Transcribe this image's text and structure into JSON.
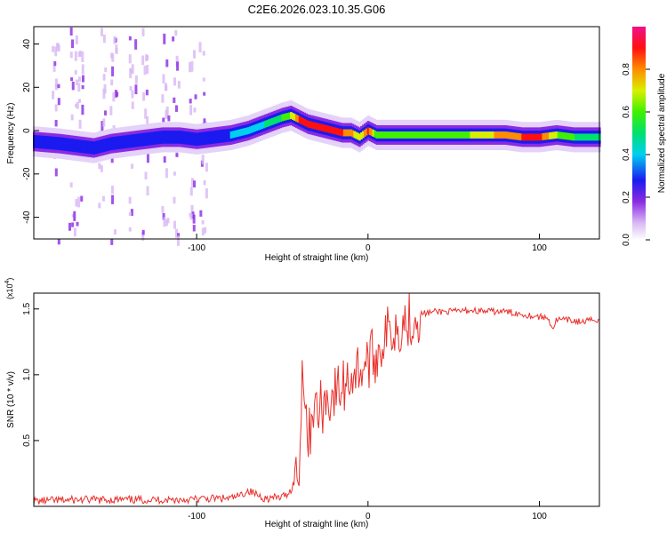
{
  "title": "C2E6.2026.023.10.35.G06",
  "chart_data": [
    {
      "type": "heatmap",
      "xlabel": "Height of straight line (km)",
      "ylabel": "Frequency (Hz)",
      "xlim": [
        -195,
        135
      ],
      "ylim": [
        -50,
        48
      ],
      "xticks": [
        -100,
        0,
        100
      ],
      "yticks": [
        -40,
        -20,
        0,
        20,
        40
      ],
      "grid": false,
      "ridge": {
        "x": [
          -195,
          -180,
          -170,
          -160,
          -150,
          -140,
          -130,
          -120,
          -110,
          -100,
          -90,
          -80,
          -70,
          -60,
          -50,
          -45,
          -40,
          -35,
          -30,
          -25,
          -20,
          -15,
          -10,
          -5,
          0,
          5,
          10,
          20,
          40,
          60,
          80,
          90,
          100,
          110,
          120,
          133
        ],
        "freq": [
          -5,
          -6,
          -7,
          -8,
          -6,
          -5,
          -4,
          -3,
          -3,
          -4,
          -3,
          -2,
          0,
          3,
          6,
          7,
          5,
          3,
          2,
          1,
          0,
          -1,
          -1,
          -3,
          0,
          -2,
          -2,
          -2,
          -2,
          -2,
          -2,
          -3,
          -3,
          -2,
          -3,
          -3
        ],
        "amplitude": [
          0.3,
          0.3,
          0.3,
          0.3,
          0.32,
          0.32,
          0.34,
          0.35,
          0.36,
          0.38,
          0.38,
          0.4,
          0.42,
          0.5,
          0.6,
          0.7,
          0.9,
          0.95,
          0.95,
          0.9,
          0.9,
          0.9,
          0.85,
          0.7,
          0.95,
          0.6,
          0.6,
          0.6,
          0.6,
          0.7,
          0.85,
          0.9,
          0.95,
          0.7,
          0.6,
          0.55
        ]
      }
    },
    {
      "type": "colorbar",
      "label": "Normalized spectral amplitude",
      "range": [
        0,
        1
      ],
      "ticks": [
        "0.0",
        "0.2",
        "0.4",
        "0.6",
        "0.8"
      ]
    },
    {
      "type": "line",
      "xlabel": "Height of straight line (km)",
      "ylabel": "SNR (10 * v/v)",
      "yscale_note": "(x10",
      "yscale_exp": "4",
      "xlim": [
        -195,
        135
      ],
      "ylim": [
        0,
        1.62
      ],
      "xticks": [
        -100,
        0,
        100
      ],
      "yticks": [
        "0.5",
        "1.0",
        "1.5"
      ],
      "series": [
        {
          "name": "SNR",
          "color": "#e8312c",
          "x": [
            -195,
            -170,
            -150,
            -130,
            -110,
            -90,
            -80,
            -75,
            -70,
            -60,
            -50,
            -45,
            -40,
            -38,
            -35,
            -32,
            -30,
            -25,
            -20,
            -15,
            -10,
            -5,
            0,
            5,
            10,
            15,
            20,
            25,
            30,
            40,
            50,
            60,
            70,
            80,
            90,
            100,
            105,
            108,
            110,
            120,
            125,
            133
          ],
          "values": [
            0.04,
            0.05,
            0.05,
            0.05,
            0.05,
            0.06,
            0.06,
            0.08,
            0.12,
            0.06,
            0.07,
            0.12,
            0.3,
            1.18,
            0.45,
            0.8,
            0.7,
            0.8,
            0.85,
            0.9,
            1.0,
            1.05,
            1.1,
            1.15,
            1.3,
            1.35,
            1.4,
            1.43,
            1.46,
            1.48,
            1.48,
            1.49,
            1.48,
            1.48,
            1.46,
            1.44,
            1.43,
            1.35,
            1.42,
            1.41,
            1.4,
            1.42
          ]
        }
      ]
    }
  ]
}
